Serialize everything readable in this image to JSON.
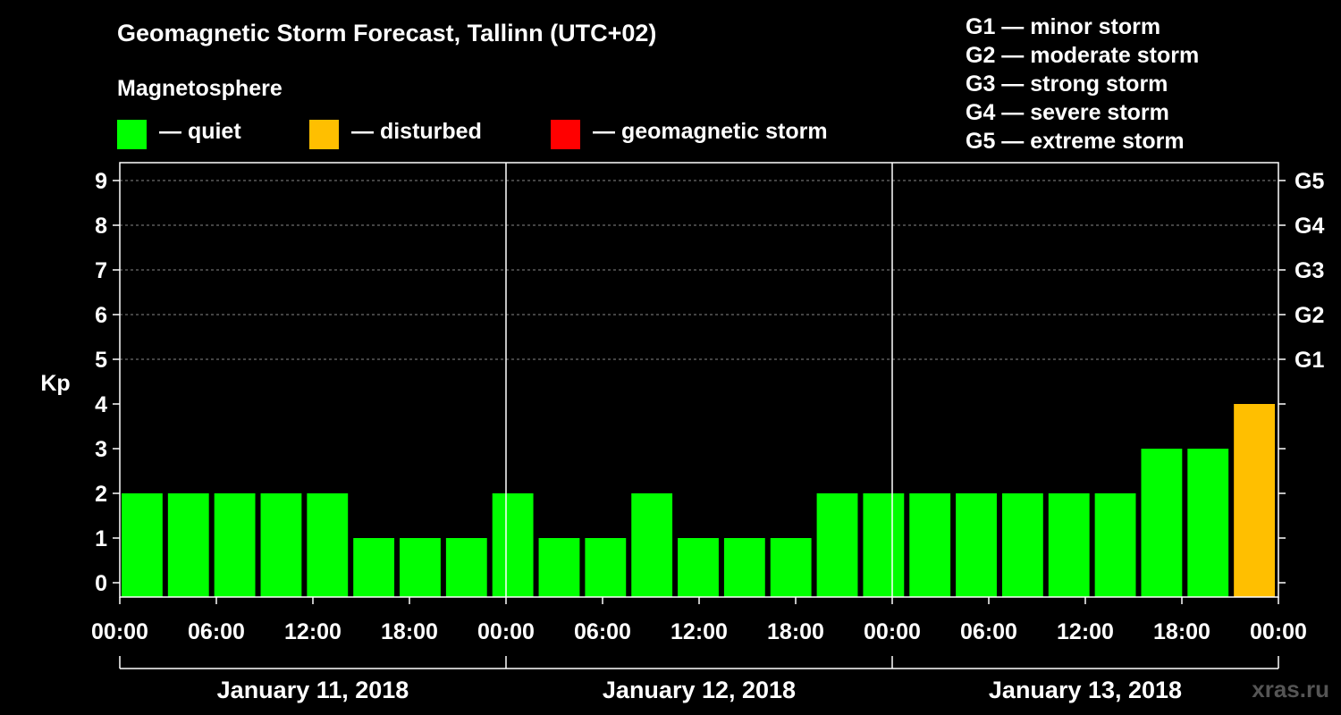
{
  "title": "Geomagnetic Storm Forecast, Tallinn (UTC+02)",
  "legend": {
    "heading": "Magnetosphere",
    "items": [
      {
        "label": "— quiet",
        "color": "#00ff00"
      },
      {
        "label": "— disturbed",
        "color": "#ffbf00"
      },
      {
        "label": "— geomagnetic storm",
        "color": "#ff0000"
      }
    ]
  },
  "storm_levels": [
    "G1 — minor storm",
    "G2 — moderate storm",
    "G3 — strong storm",
    "G4 — severe storm",
    "G5 — extreme storm"
  ],
  "watermark": "xras.ru",
  "chart_data": {
    "type": "bar",
    "title": "Geomagnetic Storm Forecast, Tallinn (UTC+02)",
    "ylabel": "Kp",
    "ylim": [
      0,
      9
    ],
    "yticks": [
      "0",
      "1",
      "2",
      "3",
      "4",
      "5",
      "6",
      "7",
      "8",
      "9"
    ],
    "right_axis_ticks": [
      {
        "kp": 5,
        "label": "G1"
      },
      {
        "kp": 6,
        "label": "G2"
      },
      {
        "kp": 7,
        "label": "G3"
      },
      {
        "kp": 8,
        "label": "G4"
      },
      {
        "kp": 9,
        "label": "G5"
      }
    ],
    "x_tick_labels": [
      "00:00",
      "06:00",
      "12:00",
      "18:00",
      "00:00",
      "06:00",
      "12:00",
      "18:00",
      "00:00",
      "06:00",
      "12:00",
      "18:00",
      "00:00"
    ],
    "days": [
      "January 11, 2018",
      "January 12, 2018",
      "January 13, 2018"
    ],
    "bar_hours": 3,
    "values": [
      2,
      2,
      2,
      2,
      2,
      1,
      1,
      1,
      2,
      1,
      1,
      2,
      1,
      1,
      1,
      2,
      2,
      2,
      2,
      2,
      2,
      2,
      3,
      3,
      4
    ],
    "colors": [
      "#00ff00",
      "#00ff00",
      "#00ff00",
      "#00ff00",
      "#00ff00",
      "#00ff00",
      "#00ff00",
      "#00ff00",
      "#00ff00",
      "#00ff00",
      "#00ff00",
      "#00ff00",
      "#00ff00",
      "#00ff00",
      "#00ff00",
      "#00ff00",
      "#00ff00",
      "#00ff00",
      "#00ff00",
      "#00ff00",
      "#00ff00",
      "#00ff00",
      "#00ff00",
      "#00ff00",
      "#ffbf00"
    ],
    "grid_levels": [
      5,
      6,
      7,
      8,
      9
    ]
  }
}
